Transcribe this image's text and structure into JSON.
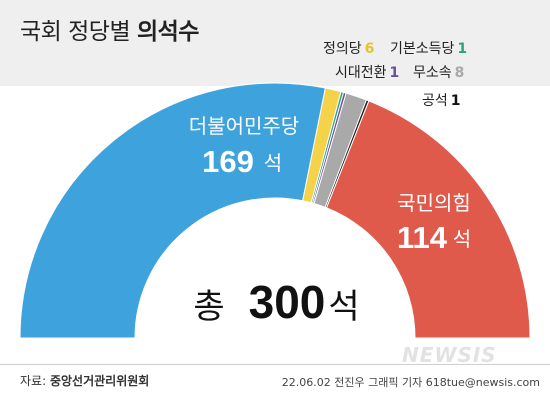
{
  "header": {
    "title_regular": "국회 정당별",
    "title_bold": "의석수"
  },
  "legend": [
    {
      "name": "정의당",
      "value": "6",
      "color": "#e8c22c"
    },
    {
      "name": "기본소득당",
      "value": "1",
      "color": "#2aa383"
    },
    {
      "name": "시대전환",
      "value": "1",
      "color": "#6a4f9c"
    },
    {
      "name": "무소속",
      "value": "8",
      "color": "#a9a9a9"
    },
    {
      "name": "공석",
      "value": "1",
      "color": "#111111"
    }
  ],
  "labels": {
    "democratic_name": "더불어민주당",
    "democratic_value": "169",
    "democratic_unit": "석",
    "ppp_name": "국민의힘",
    "ppp_value": "114",
    "ppp_unit": "석",
    "total_prefix": "총",
    "total_value": "300",
    "total_unit": "석"
  },
  "footer": {
    "source_prefix": "자료:",
    "source_name": "중앙선거관리위원회",
    "credit": "22.06.02 전진우 그래픽 기자 618tue@newsis.com",
    "watermark": "NEWSIS"
  },
  "chart_data": {
    "type": "pie",
    "total": 300,
    "slices": [
      {
        "name": "더불어민주당",
        "value": 169,
        "color": "#3ea3dc"
      },
      {
        "name": "정의당",
        "value": 6,
        "color": "#f4d24a"
      },
      {
        "name": "기본소득당",
        "value": 1,
        "color": "#2aa383"
      },
      {
        "name": "시대전환",
        "value": 1,
        "color": "#6a4f9c"
      },
      {
        "name": "무소속",
        "value": 8,
        "color": "#a9a9a9"
      },
      {
        "name": "공석",
        "value": 1,
        "color": "#222222"
      },
      {
        "name": "국민의힘",
        "value": 114,
        "color": "#e05a4c"
      }
    ]
  }
}
